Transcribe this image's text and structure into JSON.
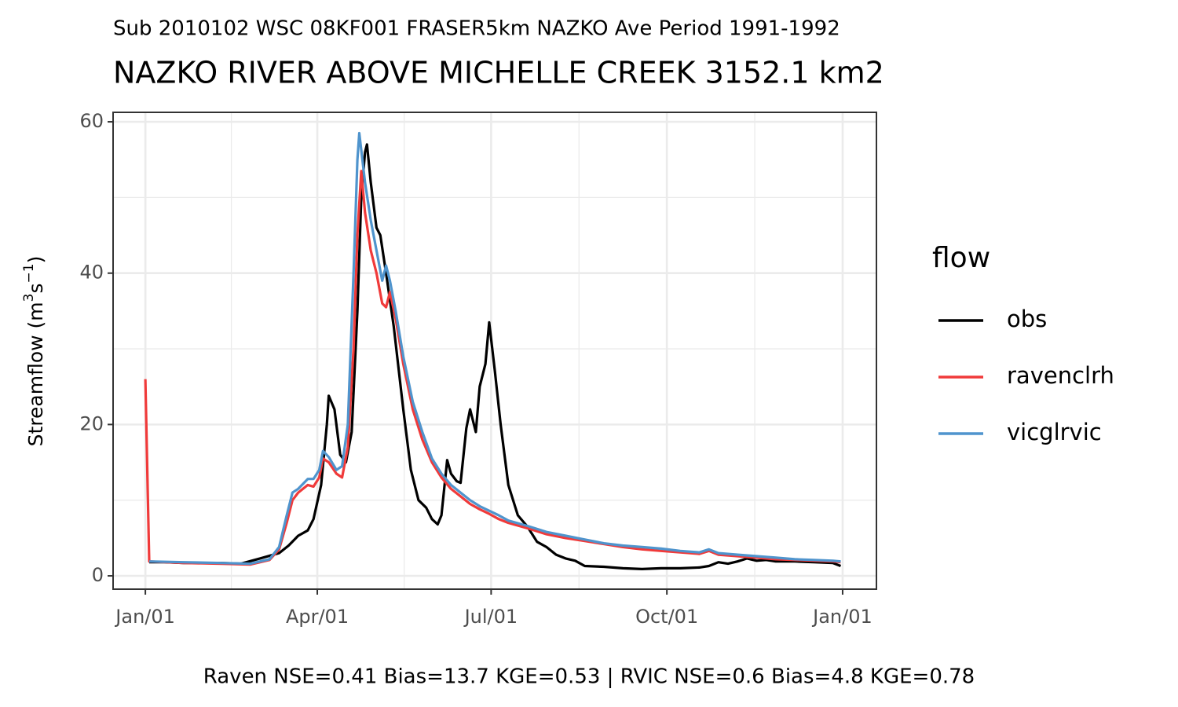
{
  "chart_data": {
    "type": "line",
    "subtitle": "Sub 2010102 WSC 08KF001 FRASER5km NAZKO Ave Period 1991-1992",
    "title": "NAZKO RIVER ABOVE MICHELLE CREEK 3152.1 km2",
    "y_label": [
      "Streamflow (m",
      "3",
      "s",
      "−1",
      ")"
    ],
    "caption": "Raven NSE=0.41 Bias=13.7 KGE=0.53 | RVIC NSE=0.6 Bias=4.8 KGE=0.78",
    "legend_title": "flow",
    "legend_position": "right",
    "grid": true,
    "xlim": [
      -16.9,
      382.7
    ],
    "xticks": [
      {
        "value": 0,
        "label": "Jan/01"
      },
      {
        "value": 90,
        "label": "Apr/01"
      },
      {
        "value": 181,
        "label": "Jul/01"
      },
      {
        "value": 273,
        "label": "Oct/01"
      },
      {
        "value": 365,
        "label": "Jan/01"
      }
    ],
    "ylim": [
      -1.76,
      61.25
    ],
    "yticks": [
      0,
      20,
      40,
      60
    ],
    "series": [
      {
        "name": "obs",
        "color": "#000000",
        "x": [
          2,
          10,
          20,
          30,
          40,
          50,
          60,
          70,
          75,
          80,
          85,
          88,
          92,
          95,
          96,
          99,
          102,
          105,
          108,
          111,
          113,
          115,
          116,
          118,
          121,
          123,
          126,
          130,
          135,
          139,
          143,
          147,
          150,
          153,
          155,
          158,
          160,
          163,
          165,
          168,
          170,
          173,
          175,
          178,
          180,
          183,
          186,
          190,
          195,
          200,
          205,
          210,
          215,
          220,
          225,
          230,
          240,
          250,
          260,
          270,
          280,
          290,
          295,
          300,
          305,
          310,
          315,
          320,
          325,
          330,
          340,
          350,
          360,
          364
        ],
        "values": [
          1.8,
          1.8,
          1.7,
          1.7,
          1.7,
          1.6,
          2.3,
          3.0,
          4.0,
          5.3,
          6.0,
          7.5,
          12,
          20,
          23.8,
          22,
          16,
          15,
          19,
          35,
          50,
          56,
          57,
          52,
          46,
          45,
          40,
          33,
          22,
          14,
          10,
          9,
          7.5,
          6.8,
          8,
          15.3,
          13.5,
          12.5,
          12.3,
          19.5,
          22,
          19,
          25,
          28,
          33.5,
          27,
          20,
          12,
          8,
          6.5,
          4.5,
          3.8,
          2.8,
          2.3,
          2.0,
          1.3,
          1.2,
          1.0,
          0.9,
          1.0,
          1.0,
          1.1,
          1.3,
          1.8,
          1.6,
          1.9,
          2.3,
          2.0,
          2.1,
          1.9,
          1.9,
          1.8,
          1.7,
          1.3
        ]
      },
      {
        "name": "ravenclrh",
        "color": "#f03a3a",
        "x": [
          0,
          2,
          20,
          40,
          55,
          60,
          65,
          70,
          74,
          77,
          80,
          85,
          88,
          91,
          93,
          96,
          100,
          103,
          106,
          109,
          111,
          113,
          115,
          118,
          121,
          124,
          126,
          128,
          131,
          135,
          140,
          145,
          150,
          155,
          160,
          165,
          170,
          175,
          180,
          185,
          190,
          200,
          210,
          220,
          230,
          240,
          250,
          260,
          270,
          280,
          290,
          295,
          300,
          310,
          320,
          330,
          340,
          350,
          360,
          364
        ],
        "values": [
          26,
          1.9,
          1.7,
          1.6,
          1.5,
          1.8,
          2.1,
          3.5,
          7,
          10,
          11,
          12,
          11.8,
          13,
          15.5,
          15,
          13.5,
          13,
          17,
          30,
          45,
          53.5,
          48,
          43,
          40,
          36,
          35.5,
          37.5,
          34,
          28,
          22,
          18,
          15,
          13,
          11.5,
          10.5,
          9.5,
          8.8,
          8.2,
          7.5,
          7.0,
          6.3,
          5.5,
          5.0,
          4.6,
          4.2,
          3.8,
          3.5,
          3.3,
          3.1,
          2.9,
          3.3,
          2.8,
          2.6,
          2.4,
          2.2,
          2.1,
          2.0,
          1.9,
          1.8
        ]
      },
      {
        "name": "vicglrvic",
        "color": "#4f94cd",
        "x": [
          2,
          20,
          40,
          55,
          60,
          65,
          70,
          74,
          77,
          80,
          85,
          88,
          91,
          93,
          96,
          100,
          103,
          106,
          109,
          111,
          112,
          115,
          118,
          121,
          124,
          126,
          128,
          131,
          135,
          140,
          145,
          150,
          155,
          160,
          165,
          170,
          175,
          180,
          185,
          190,
          200,
          210,
          220,
          230,
          240,
          250,
          260,
          270,
          280,
          290,
          295,
          300,
          310,
          320,
          330,
          340,
          350,
          360,
          364
        ],
        "values": [
          1.9,
          1.8,
          1.7,
          1.6,
          1.9,
          2.2,
          3.8,
          8,
          11,
          11.5,
          12.8,
          12.8,
          14,
          16.5,
          15.7,
          14,
          14.5,
          20,
          40,
          55,
          58.5,
          52,
          47,
          43,
          39,
          41,
          39,
          35,
          29,
          23,
          19,
          15.5,
          13.5,
          12,
          11,
          10,
          9.2,
          8.6,
          8.0,
          7.3,
          6.6,
          5.8,
          5.3,
          4.8,
          4.3,
          4.0,
          3.8,
          3.6,
          3.3,
          3.1,
          3.5,
          3.0,
          2.8,
          2.6,
          2.4,
          2.2,
          2.1,
          2.0,
          1.9
        ]
      }
    ]
  }
}
